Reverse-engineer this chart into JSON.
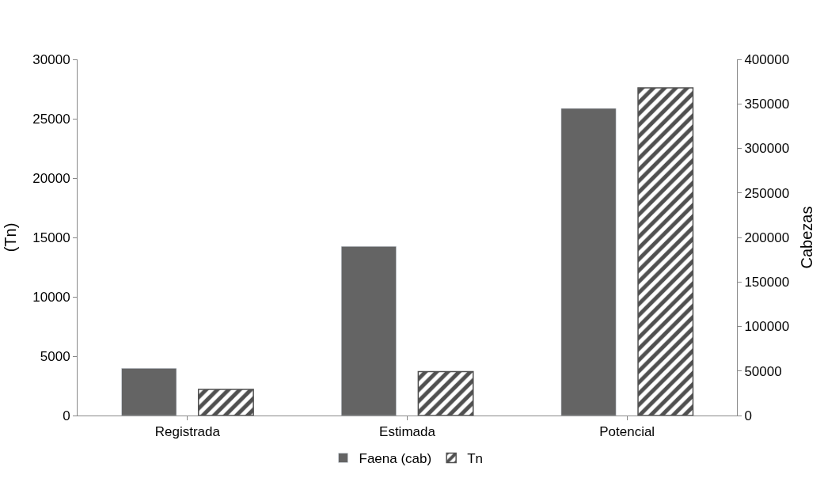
{
  "chart_data": {
    "type": "bar",
    "categories": [
      "Registrada",
      "Estimada",
      "Potencial"
    ],
    "series": [
      {
        "name": "Faena (cab)",
        "color": "#646464",
        "values": [
          53000,
          190000,
          345000
        ],
        "axis": "y2"
      },
      {
        "name": "Tn",
        "color": "#505050",
        "values": [
          2200,
          3700,
          27600
        ],
        "axis": "y"
      }
    ],
    "ylabel": "(Tn)",
    "y2label": "Cabezas",
    "ylim": [
      0,
      30000
    ],
    "yticks": [
      0,
      5000,
      10000,
      15000,
      20000,
      25000,
      30000
    ],
    "y2lim": [
      0,
      400000
    ],
    "y2ticks": [
      0,
      50000,
      100000,
      150000,
      200000,
      250000,
      300000,
      350000,
      400000
    ],
    "legend": "bottom"
  }
}
